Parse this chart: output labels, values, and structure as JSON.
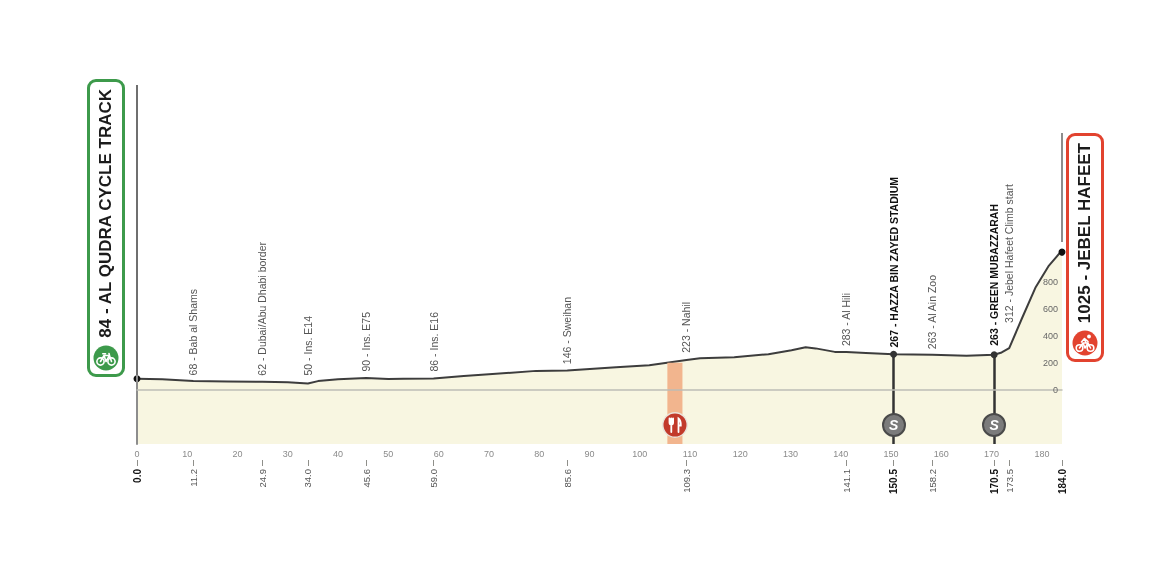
{
  "chart_data": {
    "type": "area",
    "x": [
      0,
      5,
      11.2,
      18,
      24.9,
      30,
      34,
      36,
      40,
      45.6,
      50,
      53,
      59,
      65,
      70,
      79.4,
      85.6,
      95.3,
      101.9,
      109.3,
      112,
      118.8,
      125.6,
      130.2,
      133,
      135,
      138.8,
      141.1,
      145,
      150.5,
      158.2,
      165,
      170.5,
      172,
      173.5,
      176,
      178.7,
      181.4,
      183.6,
      184
    ],
    "values": [
      84,
      80,
      68,
      65,
      62,
      58,
      50,
      67,
      80,
      90,
      82,
      84,
      86,
      105,
      118,
      143,
      146,
      170,
      185,
      223,
      237,
      244,
      267,
      296,
      318,
      310,
      284,
      283,
      275,
      267,
      263,
      255,
      263,
      280,
      312,
      530,
      760,
      925,
      1020,
      1025
    ],
    "color": "#f8f6e1",
    "xlim": [
      0,
      184
    ],
    "xticks": [
      0,
      10,
      20,
      30,
      40,
      50,
      60,
      70,
      80,
      90,
      100,
      110,
      120,
      130,
      140,
      150,
      160,
      170,
      180
    ],
    "x2lim": [
      0,
      184
    ],
    "x2ticks": [
      {
        "value": 0,
        "label": "0.0"
      },
      11.2,
      24.9,
      {
        "value": 34,
        "label": "34.0"
      },
      45.6,
      {
        "value": 59,
        "label": "59.0"
      },
      85.6,
      109.3,
      141.1,
      150.5,
      158.2,
      170.5,
      173.5,
      {
        "value": 184,
        "label": "184.0"
      }
    ],
    "ylim": [
      -400,
      1100
    ],
    "yticks": [
      0,
      200,
      400,
      600,
      800
    ],
    "ref_lines": [
      {
        "axis": "x",
        "value": 150.5,
        "label": "S",
        "color": "#333333"
      },
      {
        "axis": "x",
        "value": 170.5,
        "label": "S",
        "color": "#333333"
      }
    ],
    "bands": [
      {
        "axis": "y",
        "from": -400,
        "to": 0,
        "color": "#f8f6e1"
      },
      {
        "axis": "x",
        "from": 105.5,
        "to": 108.5,
        "color": "#f2b58e"
      }
    ],
    "annotations": [
      {
        "text": "84 - AL QUDRA CYCLE TRACK",
        "x": 0,
        "y": 84
      },
      {
        "text": "68 - Bab al Shams",
        "x": 11.2,
        "y": 68
      },
      {
        "text": "62 - Dubai/Abu Dhabi border",
        "x": 24.9,
        "y": 62
      },
      {
        "text": "50 - Ins. E14",
        "x": 34,
        "y": 50
      },
      {
        "text": "90 - Ins. E75",
        "x": 45.6,
        "y": 90
      },
      {
        "text": "86 - Ins. E16",
        "x": 59,
        "y": 86
      },
      {
        "text": "146 - Sweihan",
        "x": 85.6,
        "y": 146
      },
      {
        "text": "223 - Nahil",
        "x": 109.3,
        "y": 223
      },
      {
        "text": "283 - Al Hili",
        "x": 141.1,
        "y": 283
      },
      {
        "text": "267 - HAZZA BIN ZAYED STADIUM",
        "x": 150.5,
        "y": 267
      },
      {
        "text": "263 - Al Ain Zoo",
        "x": 158.2,
        "y": 263
      },
      {
        "text": "263 - GREEN MUBAZZARAH",
        "x": 170.5,
        "y": 263
      },
      {
        "text": "312 - Jebel Hafeet Climb start",
        "x": 173.5,
        "y": 312
      },
      {
        "text": "1025 - JEBEL HAFEET",
        "x": 184,
        "y": 1025
      }
    ]
  }
}
